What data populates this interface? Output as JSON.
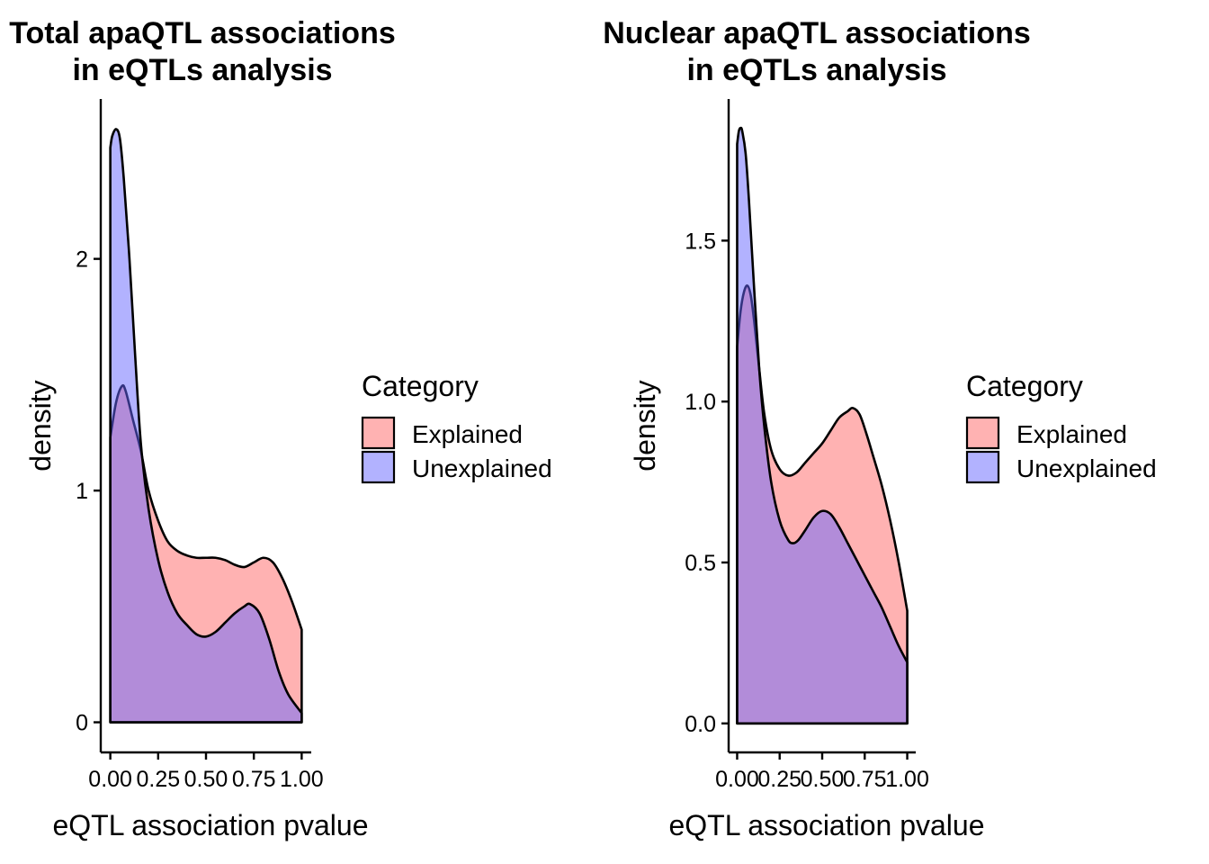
{
  "chart_data": [
    {
      "type": "area",
      "title_lines": [
        "Total apaQTL associations",
        "in eQTLs analysis"
      ],
      "xlabel": "eQTL association pvalue",
      "ylabel": "density",
      "xlim": [
        -0.05,
        1.05
      ],
      "ylim": [
        -0.13,
        2.69
      ],
      "x_ticks": [
        0,
        0.25,
        0.5,
        0.75,
        1
      ],
      "x_tick_labels": [
        "0.00",
        "0.25",
        "0.50",
        "0.75",
        "1.00"
      ],
      "y_ticks": [
        0,
        1,
        2
      ],
      "y_tick_labels": [
        "0",
        "1",
        "2"
      ],
      "legend": {
        "title": "Category",
        "position": "right",
        "items": [
          "Explained",
          "Unexplained"
        ]
      },
      "series": [
        {
          "name": "Explained",
          "color": "#ff6666",
          "x": [
            0,
            0.03,
            0.06,
            0.08,
            0.12,
            0.16,
            0.2,
            0.25,
            0.3,
            0.35,
            0.4,
            0.45,
            0.5,
            0.55,
            0.6,
            0.65,
            0.7,
            0.75,
            0.8,
            0.85,
            0.9,
            0.95,
            1.0
          ],
          "y": [
            1.23,
            1.38,
            1.45,
            1.43,
            1.3,
            1.17,
            1.0,
            0.87,
            0.78,
            0.74,
            0.72,
            0.71,
            0.71,
            0.71,
            0.7,
            0.68,
            0.67,
            0.69,
            0.71,
            0.69,
            0.62,
            0.52,
            0.4
          ]
        },
        {
          "name": "Unexplained",
          "color": "#6666ff",
          "x": [
            0,
            0.01,
            0.03,
            0.05,
            0.07,
            0.1,
            0.13,
            0.16,
            0.2,
            0.25,
            0.3,
            0.35,
            0.4,
            0.45,
            0.5,
            0.55,
            0.6,
            0.65,
            0.7,
            0.73,
            0.78,
            0.83,
            0.88,
            0.93,
            1.0
          ],
          "y": [
            2.48,
            2.53,
            2.56,
            2.52,
            2.35,
            2.0,
            1.58,
            1.2,
            0.92,
            0.7,
            0.56,
            0.47,
            0.42,
            0.38,
            0.37,
            0.39,
            0.43,
            0.47,
            0.5,
            0.51,
            0.47,
            0.36,
            0.22,
            0.12,
            0.04
          ]
        }
      ]
    },
    {
      "type": "area",
      "title_lines": [
        "Nuclear apaQTL associations",
        "in eQTLs analysis"
      ],
      "xlabel": "eQTL association pvalue",
      "ylabel": "density",
      "xlim": [
        -0.05,
        1.05
      ],
      "ylim": [
        -0.09,
        1.94
      ],
      "x_ticks": [
        0,
        0.25,
        0.5,
        0.75,
        1
      ],
      "x_tick_labels": [
        "0.00",
        "0.25",
        "0.50",
        "0.75",
        "1.00"
      ],
      "y_ticks": [
        0,
        0.5,
        1,
        1.5
      ],
      "y_tick_labels": [
        "0.0",
        "0.5",
        "1.0",
        "1.5"
      ],
      "legend": {
        "title": "Category",
        "position": "right",
        "items": [
          "Explained",
          "Unexplained"
        ]
      },
      "series": [
        {
          "name": "Explained",
          "color": "#ff6666",
          "x": [
            0,
            0.02,
            0.04,
            0.06,
            0.08,
            0.1,
            0.13,
            0.16,
            0.2,
            0.25,
            0.3,
            0.35,
            0.4,
            0.45,
            0.5,
            0.55,
            0.6,
            0.65,
            0.68,
            0.72,
            0.76,
            0.8,
            0.85,
            0.9,
            0.95,
            1.0
          ],
          "y": [
            1.17,
            1.28,
            1.34,
            1.36,
            1.33,
            1.25,
            1.1,
            0.96,
            0.85,
            0.79,
            0.77,
            0.78,
            0.81,
            0.84,
            0.87,
            0.91,
            0.95,
            0.97,
            0.98,
            0.96,
            0.9,
            0.83,
            0.74,
            0.63,
            0.5,
            0.35
          ]
        },
        {
          "name": "Unexplained",
          "color": "#6666ff",
          "x": [
            0,
            0.01,
            0.02,
            0.03,
            0.05,
            0.07,
            0.1,
            0.13,
            0.16,
            0.2,
            0.25,
            0.3,
            0.33,
            0.36,
            0.4,
            0.45,
            0.5,
            0.55,
            0.6,
            0.65,
            0.7,
            0.75,
            0.8,
            0.85,
            0.9,
            0.95,
            1.0
          ],
          "y": [
            1.8,
            1.84,
            1.85,
            1.84,
            1.77,
            1.62,
            1.35,
            1.1,
            0.92,
            0.75,
            0.63,
            0.57,
            0.56,
            0.57,
            0.6,
            0.64,
            0.66,
            0.65,
            0.61,
            0.56,
            0.51,
            0.46,
            0.41,
            0.36,
            0.3,
            0.24,
            0.19
          ]
        }
      ]
    }
  ]
}
